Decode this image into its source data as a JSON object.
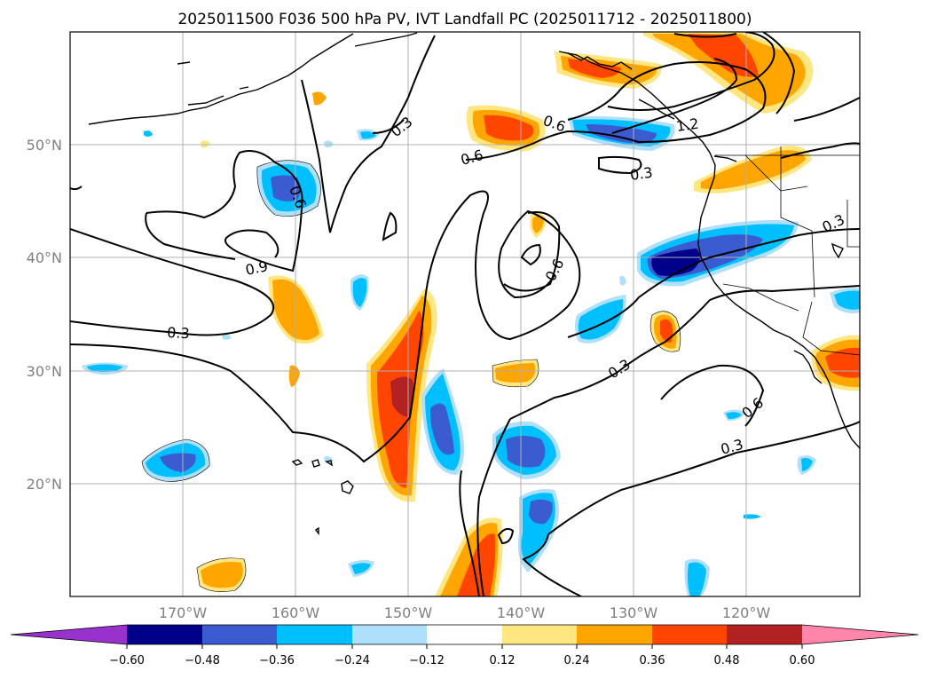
{
  "title": "2025011500 F036 500 hPa PV, IVT Landfall PC (2025011712 - 2025011800)",
  "map": {
    "lon_ticks": [
      "170°W",
      "160°W",
      "150°W",
      "140°W",
      "130°W",
      "120°W"
    ],
    "lat_ticks": [
      "50°N",
      "40°N",
      "30°N",
      "20°N"
    ],
    "gridlines": true
  },
  "contour_labels": {
    "c1": "0.3",
    "c2": "0.6",
    "c3": "0.6",
    "c4": "1.2",
    "c5": "0.3",
    "c6": "0.6",
    "c7": "0.9",
    "c8": "0.3",
    "c9": "0.6",
    "c10": "0.3",
    "c11": "0.3",
    "c12": "0.6",
    "c13": "0.3"
  },
  "colorbar": {
    "ticks": [
      "−0.60",
      "−0.48",
      "−0.36",
      "−0.24",
      "−0.12",
      "0.12",
      "0.24",
      "0.36",
      "0.48",
      "0.60"
    ],
    "colors": {
      "under": "#9932cc",
      "b1": "#00008b",
      "b2": "#3b5bd0",
      "b3": "#00bfff",
      "b4": "#afe0fb",
      "b5": "#ffffff",
      "b6": "#ffe680",
      "b7": "#ffa500",
      "b8": "#ff4500",
      "b9": "#b22222",
      "over": "#ff85aa"
    }
  },
  "chart_data": {
    "type": "heatmap",
    "title": "2025011500 F036 500 hPa PV, IVT Landfall PC (2025011712 - 2025011800)",
    "x_range": [
      -180,
      -110
    ],
    "y_range": [
      10,
      60
    ],
    "contour_levels": [
      0.3,
      0.6,
      0.9,
      1.2
    ],
    "shading_levels": [
      -0.6,
      -0.48,
      -0.36,
      -0.24,
      -0.12,
      0.12,
      0.24,
      0.36,
      0.48,
      0.6
    ],
    "grid": true
  }
}
